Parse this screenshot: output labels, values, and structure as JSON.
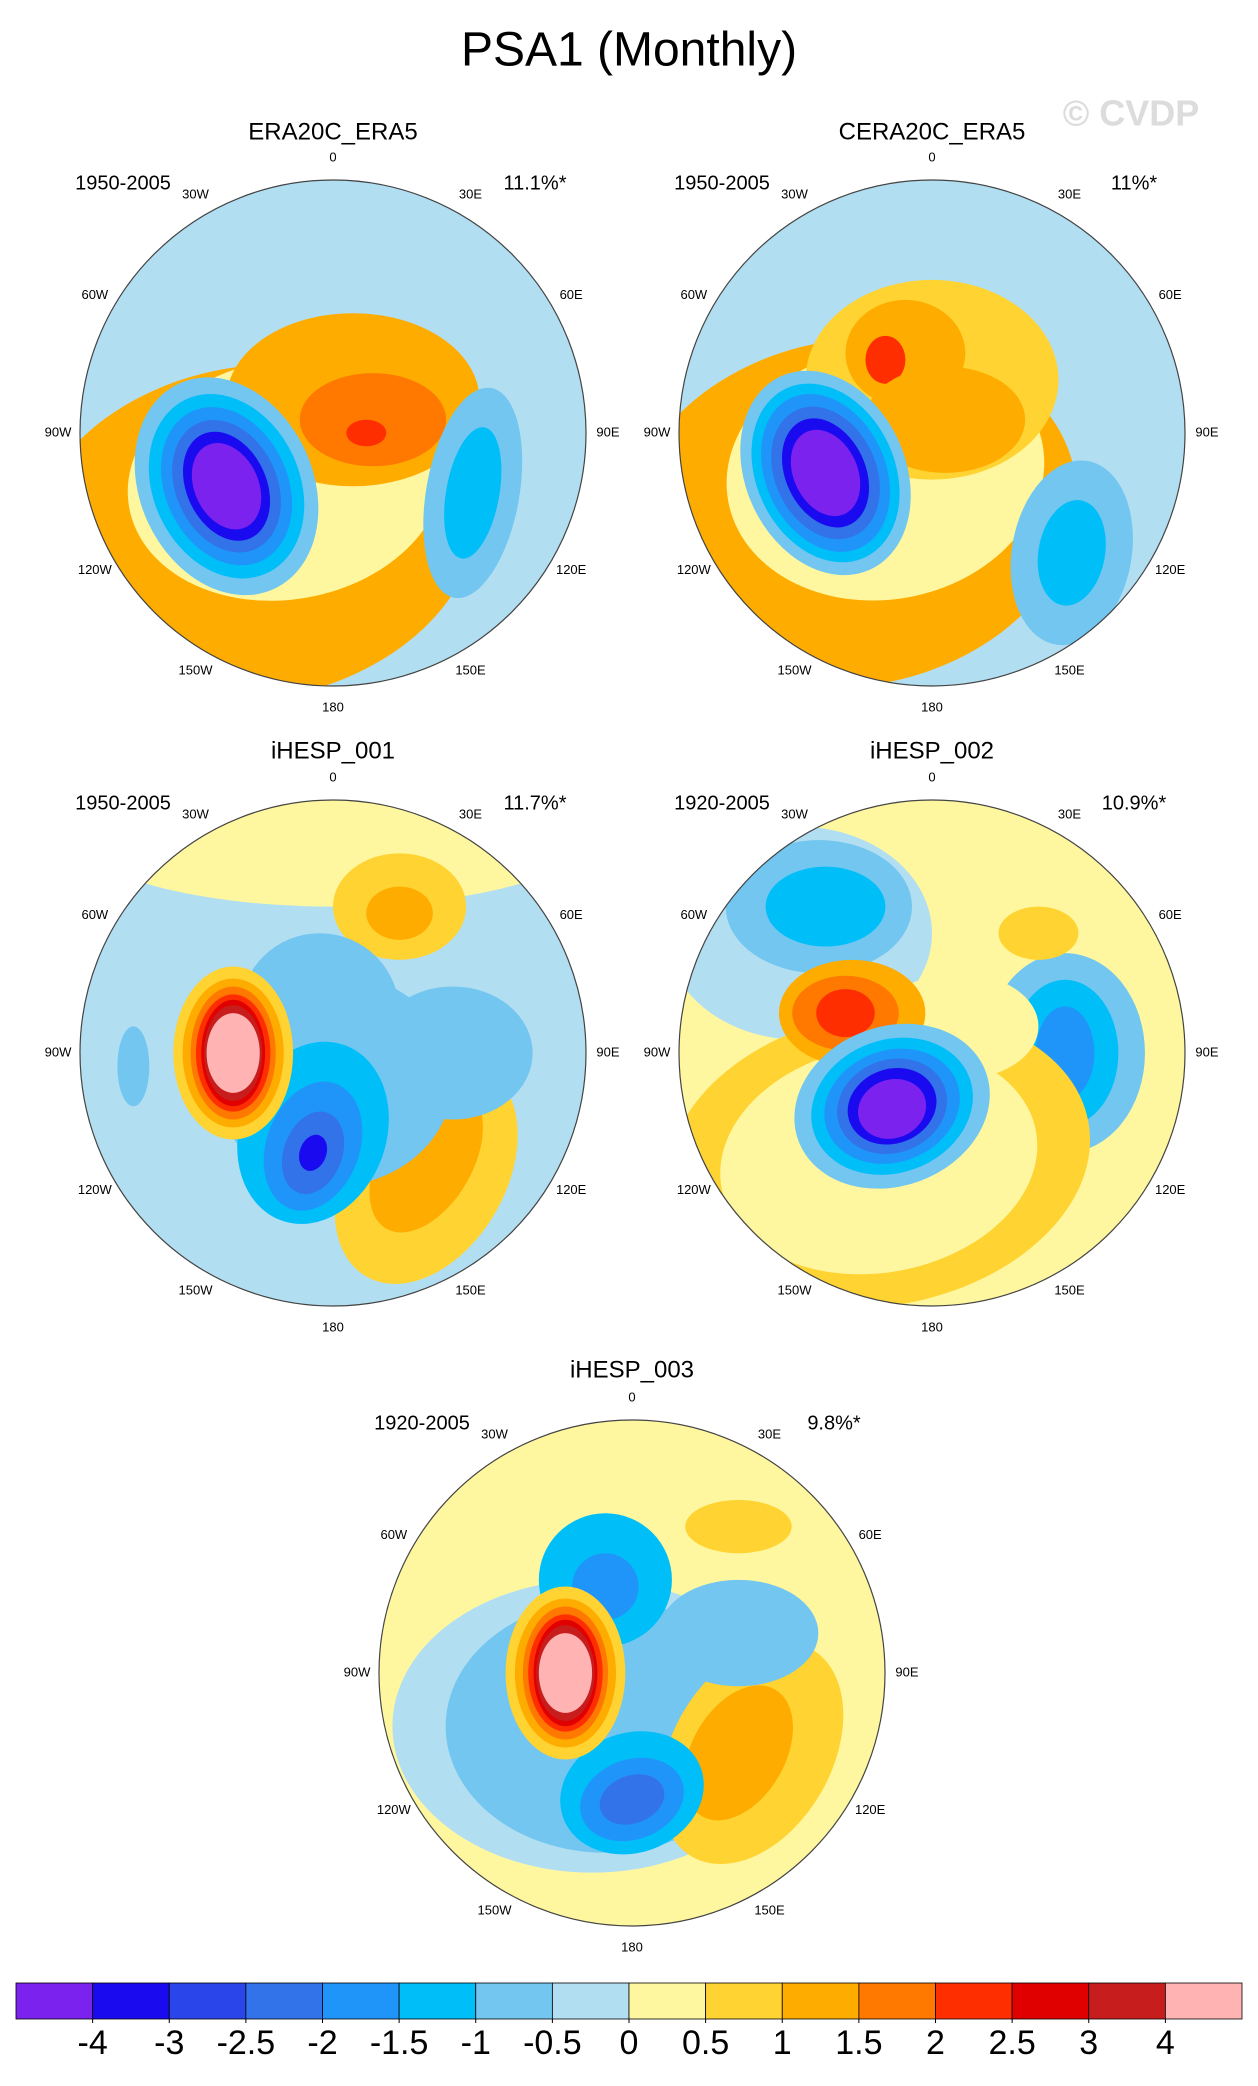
{
  "chart_data": {
    "type": "polar-map-panels",
    "title": "PSA1 (Monthly)",
    "watermark": "© CVDP",
    "panels": [
      {
        "title": "ERA20C_ERA5",
        "period": "1950-2005",
        "percent": "11.1%*"
      },
      {
        "title": "CERA20C_ERA5",
        "period": "1950-2005",
        "percent": "11%*"
      },
      {
        "title": "iHESP_001",
        "period": "1950-2005",
        "percent": "11.7%*"
      },
      {
        "title": "iHESP_002",
        "period": "1920-2005",
        "percent": "10.9%*"
      },
      {
        "title": "iHESP_003",
        "period": "1920-2005",
        "percent": "9.8%*"
      }
    ],
    "lon_labels": [
      "0",
      "30E",
      "60E",
      "90E",
      "120E",
      "150E",
      "180",
      "150W",
      "120W",
      "90W",
      "60W",
      "30W"
    ],
    "colorbar": {
      "levels": [
        -4,
        -3,
        -2.5,
        -2,
        -1.5,
        -1,
        -0.5,
        0,
        0.5,
        1,
        1.5,
        2,
        2.5,
        3,
        4
      ],
      "colors": [
        "#7b22ee",
        "#1a0af0",
        "#2a45ea",
        "#3273ea",
        "#1f95fa",
        "#00bff8",
        "#72c6f0",
        "#b2def2",
        "#fff7a0",
        "#ffd331",
        "#ffac00",
        "#ff7800",
        "#ff2e00",
        "#e00000",
        "#c81d1d",
        "#ffb3b3"
      ]
    }
  }
}
